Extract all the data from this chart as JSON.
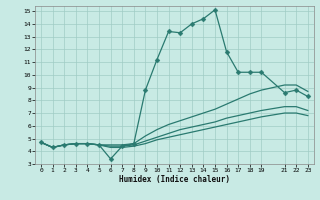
{
  "xlabel": "Humidex (Indice chaleur)",
  "bg_color": "#c8eae4",
  "line_color": "#2a7a70",
  "grid_color": "#a0ccc5",
  "xlim": [
    -0.5,
    23.5
  ],
  "ylim": [
    3,
    15.4
  ],
  "xticks": [
    0,
    1,
    2,
    3,
    4,
    5,
    6,
    7,
    8,
    9,
    10,
    11,
    12,
    13,
    14,
    15,
    16,
    17,
    18,
    19,
    21,
    22,
    23
  ],
  "yticks": [
    3,
    4,
    5,
    6,
    7,
    8,
    9,
    10,
    11,
    12,
    13,
    14,
    15
  ],
  "series": [
    {
      "x": [
        0,
        1,
        2,
        3,
        4,
        5,
        6,
        7,
        8,
        9,
        10,
        11,
        12,
        13,
        14,
        15,
        16,
        17,
        18,
        19,
        21,
        22,
        23
      ],
      "y": [
        4.7,
        4.3,
        4.5,
        4.6,
        4.6,
        4.5,
        3.4,
        4.4,
        4.6,
        8.8,
        11.2,
        13.4,
        13.3,
        14.0,
        14.4,
        15.1,
        11.8,
        10.2,
        10.2,
        10.2,
        8.6,
        8.8,
        8.3
      ],
      "marker": "D",
      "markersize": 2.5,
      "lw": 0.9
    },
    {
      "x": [
        0,
        1,
        2,
        3,
        4,
        5,
        6,
        7,
        8,
        9,
        10,
        11,
        12,
        13,
        14,
        15,
        16,
        17,
        18,
        19,
        21,
        22,
        23
      ],
      "y": [
        4.7,
        4.3,
        4.5,
        4.6,
        4.6,
        4.5,
        4.5,
        4.5,
        4.6,
        5.2,
        5.7,
        6.1,
        6.4,
        6.7,
        7.0,
        7.3,
        7.7,
        8.1,
        8.5,
        8.8,
        9.2,
        9.2,
        8.7
      ],
      "marker": null,
      "markersize": 0,
      "lw": 0.9
    },
    {
      "x": [
        0,
        1,
        2,
        3,
        4,
        5,
        6,
        7,
        8,
        9,
        10,
        11,
        12,
        13,
        14,
        15,
        16,
        17,
        18,
        19,
        21,
        22,
        23
      ],
      "y": [
        4.7,
        4.3,
        4.5,
        4.6,
        4.6,
        4.5,
        4.4,
        4.4,
        4.5,
        4.8,
        5.1,
        5.4,
        5.7,
        5.9,
        6.1,
        6.3,
        6.6,
        6.8,
        7.0,
        7.2,
        7.5,
        7.5,
        7.2
      ],
      "marker": null,
      "markersize": 0,
      "lw": 0.9
    },
    {
      "x": [
        0,
        1,
        2,
        3,
        4,
        5,
        6,
        7,
        8,
        9,
        10,
        11,
        12,
        13,
        14,
        15,
        16,
        17,
        18,
        19,
        21,
        22,
        23
      ],
      "y": [
        4.7,
        4.3,
        4.5,
        4.6,
        4.6,
        4.5,
        4.3,
        4.3,
        4.4,
        4.6,
        4.9,
        5.1,
        5.3,
        5.5,
        5.7,
        5.9,
        6.1,
        6.3,
        6.5,
        6.7,
        7.0,
        7.0,
        6.8
      ],
      "marker": null,
      "markersize": 0,
      "lw": 0.9
    }
  ]
}
